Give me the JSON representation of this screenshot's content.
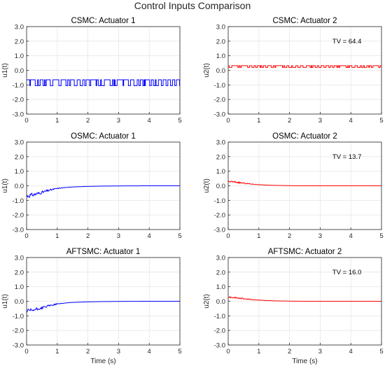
{
  "figure": {
    "title": "Control Inputs Comparison"
  },
  "chart_data": [
    {
      "type": "line",
      "title": "CSMC: Actuator 1",
      "xlabel": "",
      "ylabel": "u1(t)",
      "xlim": [
        0,
        5
      ],
      "ylim": [
        -3.0,
        3.0
      ],
      "grid": true,
      "xticks": [
        "0",
        "1",
        "2",
        "3",
        "4",
        "5"
      ],
      "yticks": [
        "-3.0",
        "-2.0",
        "-1.0",
        "0.0",
        "1.0",
        "2.0",
        "3.0"
      ],
      "series": [
        {
          "color": "#0000ff",
          "behavior": "chattering",
          "levels": [
            -0.65,
            -1.05
          ],
          "x": [
            0,
            5
          ]
        }
      ]
    },
    {
      "type": "line",
      "title": "CSMC: Actuator 2",
      "xlabel": "",
      "ylabel": "u2(t)",
      "xlim": [
        0,
        5
      ],
      "ylim": [
        -3.0,
        3.0
      ],
      "grid": true,
      "annotation": "TV = 64.4",
      "xticks": [
        "0",
        "1",
        "2",
        "3",
        "4",
        "5"
      ],
      "yticks": [
        "-3.0",
        "-2.0",
        "-1.0",
        "0.0",
        "1.0",
        "2.0",
        "3.0"
      ],
      "series": [
        {
          "color": "#ff0000",
          "behavior": "chattering",
          "levels": [
            0.32,
            0.2
          ],
          "x": [
            0,
            5
          ]
        }
      ]
    },
    {
      "type": "line",
      "title": "OSMC: Actuator 1",
      "xlabel": "",
      "ylabel": "u1(t)",
      "xlim": [
        0,
        5
      ],
      "ylim": [
        -3.0,
        3.0
      ],
      "grid": true,
      "xticks": [
        "0",
        "1",
        "2",
        "3",
        "4",
        "5"
      ],
      "yticks": [
        "-3.0",
        "-2.0",
        "-1.0",
        "0.0",
        "1.0",
        "2.0",
        "3.0"
      ],
      "series": [
        {
          "color": "#0000ff",
          "behavior": "decaying",
          "x": [
            0,
            0.25,
            0.5,
            0.75,
            1.0,
            1.25,
            1.5,
            2.0,
            2.5,
            3.0,
            4.0,
            5.0
          ],
          "y": [
            -0.7,
            -0.6,
            -0.45,
            -0.3,
            -0.18,
            -0.12,
            -0.08,
            -0.04,
            -0.02,
            -0.01,
            0.0,
            0.0
          ]
        }
      ]
    },
    {
      "type": "line",
      "title": "OSMC: Actuator 2",
      "xlabel": "",
      "ylabel": "u2(t)",
      "xlim": [
        0,
        5
      ],
      "ylim": [
        -3.0,
        3.0
      ],
      "grid": true,
      "annotation": "TV = 13.7",
      "xticks": [
        "0",
        "1",
        "2",
        "3",
        "4",
        "5"
      ],
      "yticks": [
        "-3.0",
        "-2.0",
        "-1.0",
        "0.0",
        "1.0",
        "2.0",
        "3.0"
      ],
      "series": [
        {
          "color": "#ff0000",
          "behavior": "decaying",
          "x": [
            0,
            0.25,
            0.5,
            0.75,
            1.0,
            1.25,
            1.5,
            2.0,
            2.5,
            3.0,
            4.0,
            5.0
          ],
          "y": [
            0.3,
            0.25,
            0.18,
            0.12,
            0.08,
            0.05,
            0.03,
            0.01,
            0.0,
            0.0,
            0.0,
            0.0
          ]
        }
      ]
    },
    {
      "type": "line",
      "title": "AFTSMC: Actuator 1",
      "xlabel": "Time (s)",
      "ylabel": "u1(t)",
      "xlim": [
        0,
        5
      ],
      "ylim": [
        -3.0,
        3.0
      ],
      "grid": true,
      "xticks": [
        "0",
        "1",
        "2",
        "3",
        "4",
        "5"
      ],
      "yticks": [
        "-3.0",
        "-2.0",
        "-1.0",
        "0.0",
        "1.0",
        "2.0",
        "3.0"
      ],
      "series": [
        {
          "color": "#0000ff",
          "behavior": "decaying",
          "x": [
            0,
            0.25,
            0.5,
            0.75,
            1.0,
            1.25,
            1.5,
            2.0,
            2.5,
            3.0,
            4.0,
            5.0
          ],
          "y": [
            -0.7,
            -0.6,
            -0.45,
            -0.3,
            -0.18,
            -0.12,
            -0.08,
            -0.04,
            -0.02,
            -0.01,
            0.0,
            0.0
          ]
        }
      ]
    },
    {
      "type": "line",
      "title": "AFTSMC: Actuator 2",
      "xlabel": "Time (s)",
      "ylabel": "u2(t)",
      "xlim": [
        0,
        5
      ],
      "ylim": [
        -3.0,
        3.0
      ],
      "grid": true,
      "annotation": "TV = 16.0",
      "xticks": [
        "0",
        "1",
        "2",
        "3",
        "4",
        "5"
      ],
      "yticks": [
        "-3.0",
        "-2.0",
        "-1.0",
        "0.0",
        "1.0",
        "2.0",
        "3.0"
      ],
      "series": [
        {
          "color": "#ff0000",
          "behavior": "decaying",
          "x": [
            0,
            0.25,
            0.5,
            0.75,
            1.0,
            1.25,
            1.5,
            2.0,
            2.5,
            3.0,
            4.0,
            5.0
          ],
          "y": [
            0.3,
            0.25,
            0.18,
            0.12,
            0.08,
            0.05,
            0.03,
            0.01,
            0.0,
            0.0,
            0.0,
            0.0
          ]
        }
      ]
    }
  ]
}
